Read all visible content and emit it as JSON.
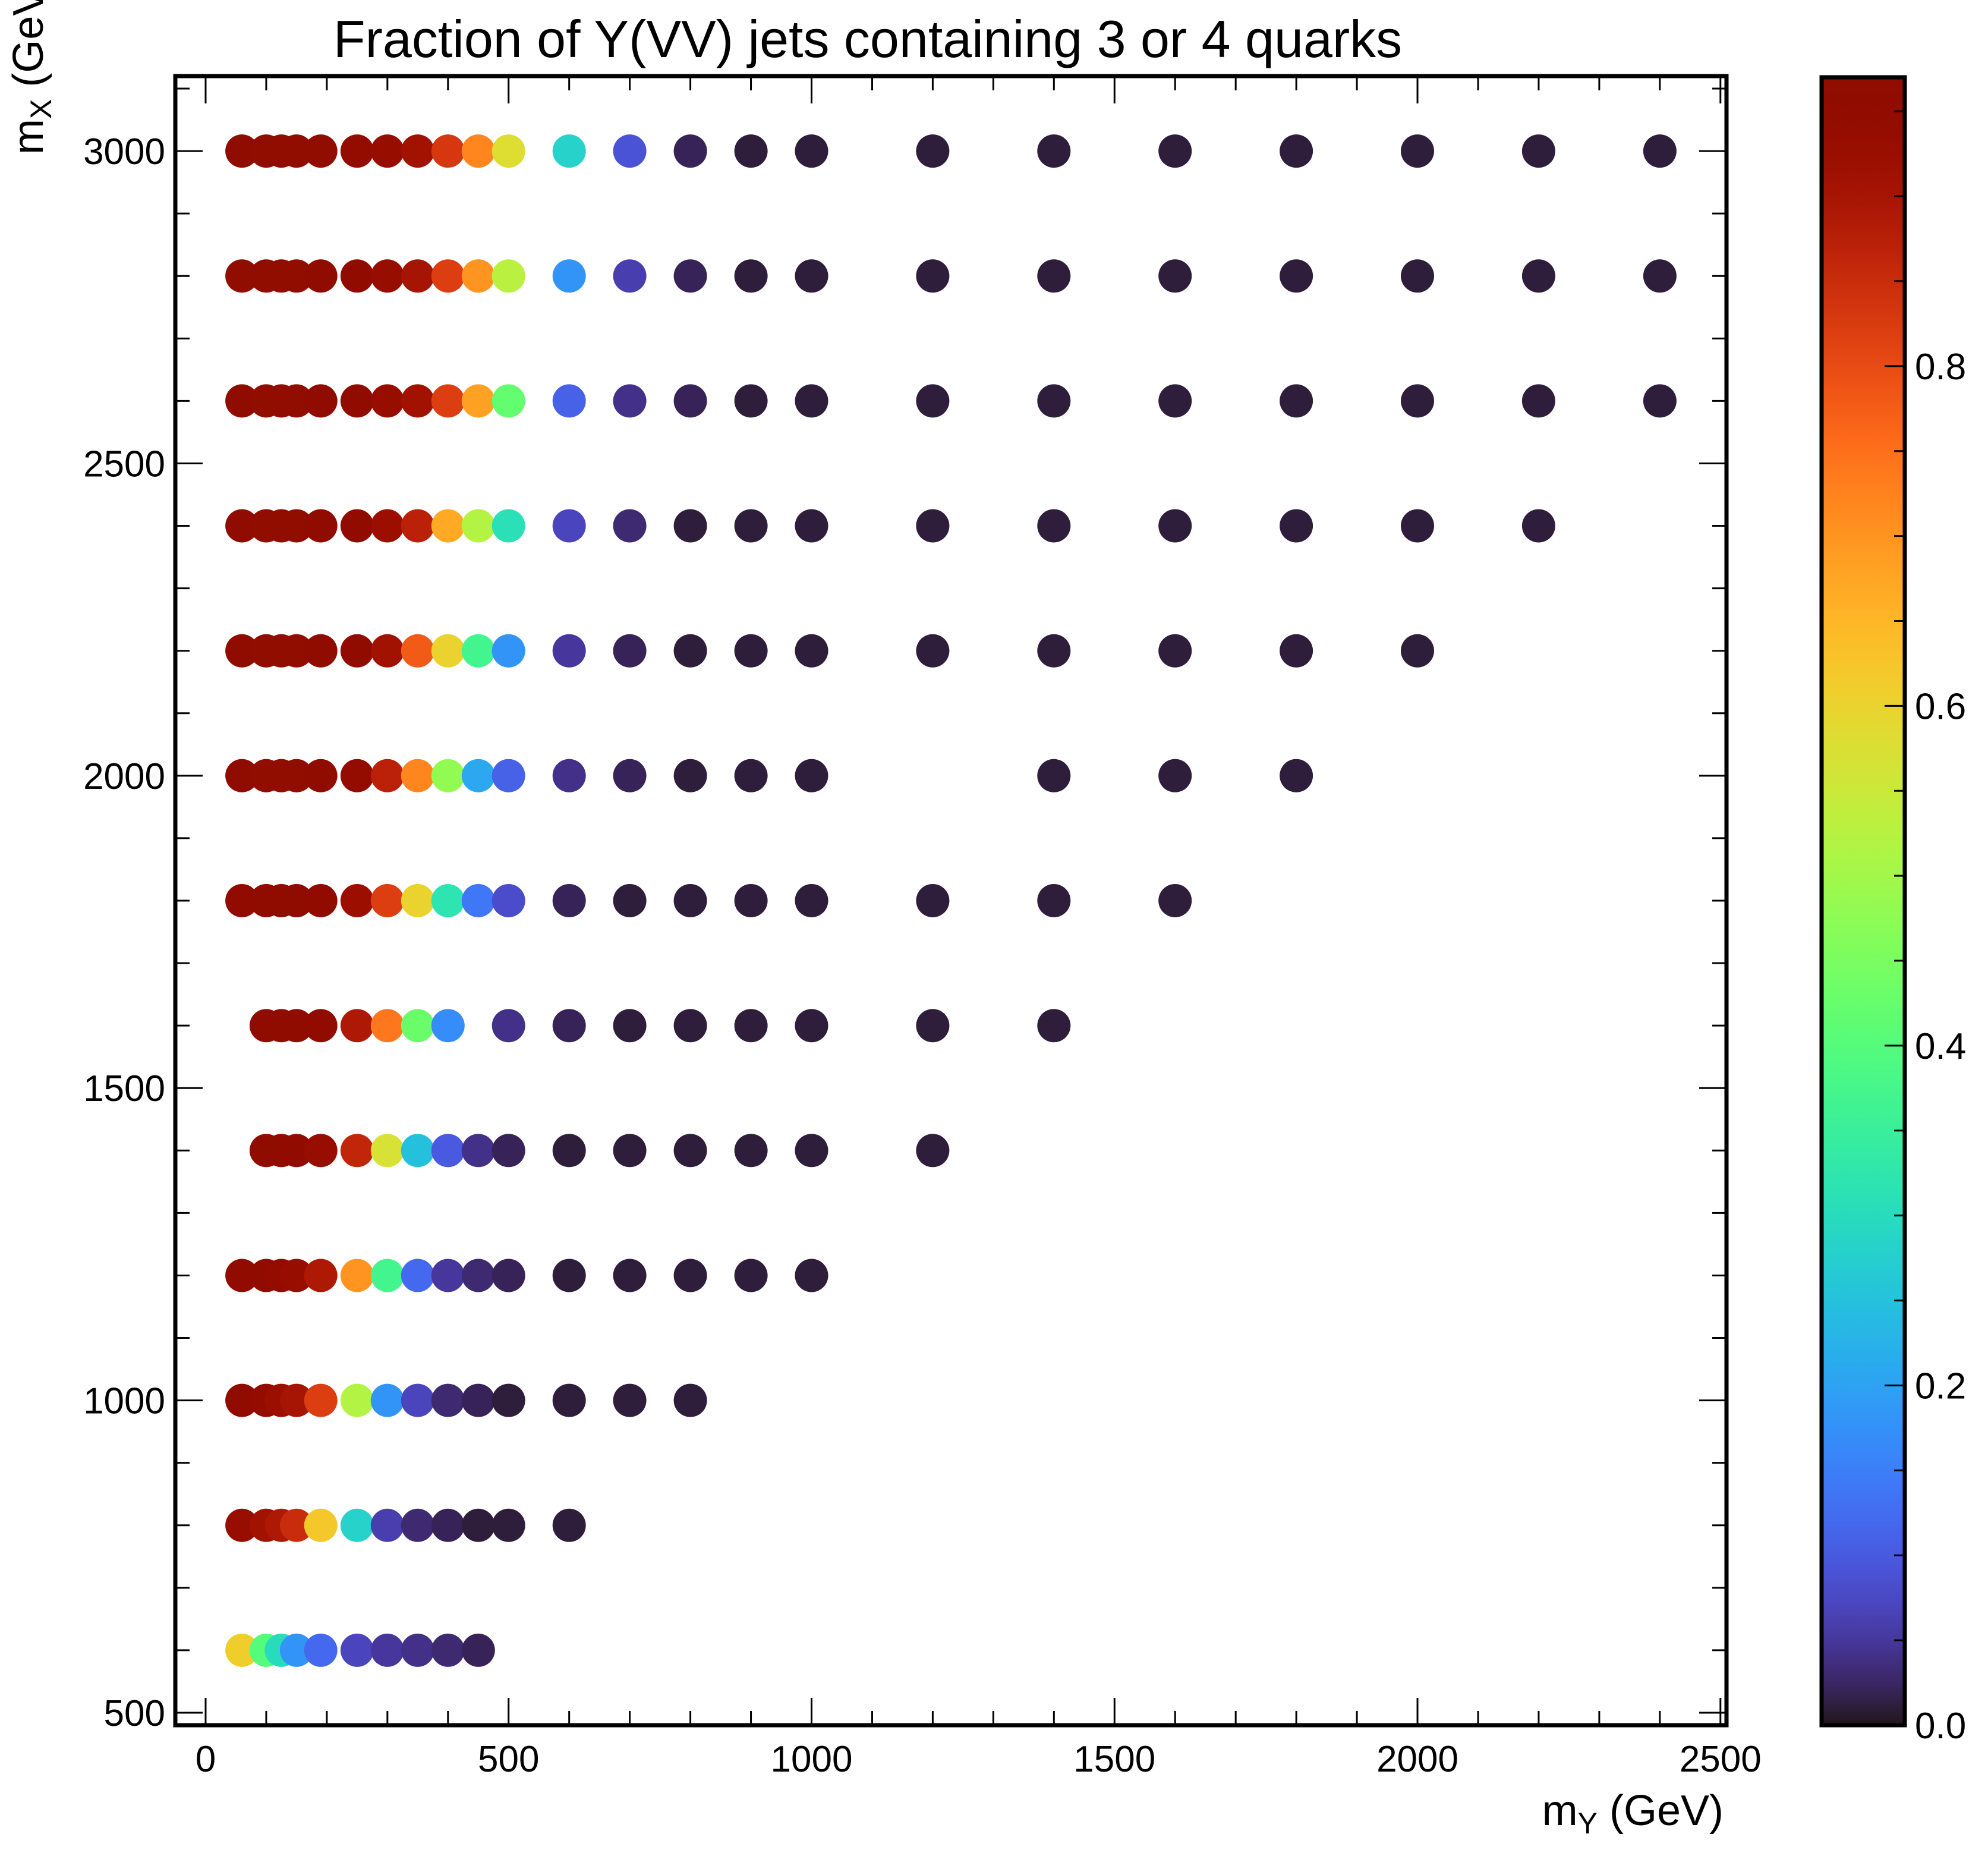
{
  "chart_data": {
    "type": "scatter",
    "title": "Fraction of Y(VV) jets containing 3 or 4 quarks",
    "xlabel": {
      "main": "m",
      "sub": "Y",
      "unit": " (GeV)"
    },
    "ylabel": {
      "main": "m",
      "sub": "X",
      "unit": " (GeV)"
    },
    "xlim": [
      -50,
      2510
    ],
    "ylim": [
      480,
      3120
    ],
    "x_ticks": [
      "0",
      "500",
      "1000",
      "1500",
      "2000",
      "2500"
    ],
    "x_tick_values": [
      0,
      500,
      1000,
      1500,
      2000,
      2500
    ],
    "y_ticks": [
      "500",
      "1000",
      "1500",
      "2000",
      "2500",
      "3000"
    ],
    "y_tick_values": [
      500,
      1000,
      1500,
      2000,
      2500,
      3000
    ],
    "colorbar": {
      "range": [
        0,
        0.97
      ],
      "tick_values": [
        0,
        0.2,
        0.4,
        0.6,
        0.8
      ],
      "tick_labels": [
        "0.0",
        "0.2",
        "0.4",
        "0.6",
        "0.8"
      ],
      "colormap": "turbo"
    },
    "rows": [
      {
        "mX": 3000,
        "mY": [
          60,
          100,
          125,
          150,
          190,
          250,
          300,
          350,
          400,
          450,
          500,
          600,
          700,
          800,
          900,
          1000,
          1200,
          1400,
          1600,
          1800,
          2000,
          2200,
          2400
        ],
        "z": [
          0.96,
          0.97,
          0.97,
          0.97,
          0.97,
          0.94,
          0.93,
          0.91,
          0.83,
          0.72,
          0.58,
          0.28,
          0.09,
          0.02,
          0.01,
          0.01,
          0.01,
          0.01,
          0.01,
          0.01,
          0.01,
          0.01,
          0.01
        ]
      },
      {
        "mX": 2800,
        "mY": [
          60,
          100,
          125,
          150,
          190,
          250,
          300,
          350,
          400,
          450,
          500,
          600,
          700,
          800,
          900,
          1000,
          1200,
          1400,
          1600,
          1800,
          2000,
          2200,
          2400
        ],
        "z": [
          0.97,
          0.97,
          0.97,
          0.97,
          0.96,
          0.95,
          0.93,
          0.9,
          0.82,
          0.7,
          0.53,
          0.18,
          0.06,
          0.02,
          0.01,
          0.01,
          0.01,
          0.01,
          0.01,
          0.01,
          0.01,
          0.01,
          0.01
        ]
      },
      {
        "mX": 2600,
        "mY": [
          60,
          100,
          125,
          150,
          190,
          250,
          300,
          350,
          400,
          450,
          500,
          600,
          700,
          800,
          900,
          1000,
          1200,
          1400,
          1600,
          1800,
          2000,
          2200,
          2400
        ],
        "z": [
          0.96,
          0.97,
          0.97,
          0.97,
          0.96,
          0.95,
          0.93,
          0.91,
          0.82,
          0.68,
          0.42,
          0.11,
          0.04,
          0.02,
          0.01,
          0.01,
          0.01,
          0.01,
          0.01,
          0.01,
          0.01,
          0.01,
          0.01
        ]
      },
      {
        "mX": 2400,
        "mY": [
          60,
          100,
          125,
          150,
          190,
          250,
          300,
          350,
          400,
          450,
          500,
          600,
          700,
          800,
          900,
          1000,
          1200,
          1400,
          1600,
          1800,
          2000,
          2200
        ],
        "z": [
          0.96,
          0.97,
          0.97,
          0.97,
          0.96,
          0.95,
          0.92,
          0.87,
          0.67,
          0.52,
          0.31,
          0.07,
          0.03,
          0.01,
          0.01,
          0.01,
          0.01,
          0.01,
          0.01,
          0.01,
          0.01,
          0.01
        ]
      },
      {
        "mX": 2200,
        "mY": [
          60,
          100,
          125,
          150,
          190,
          250,
          300,
          350,
          400,
          450,
          500,
          600,
          700,
          800,
          900,
          1000,
          1200,
          1400,
          1600,
          1800,
          2000
        ],
        "z": [
          0.96,
          0.97,
          0.97,
          0.97,
          0.96,
          0.95,
          0.91,
          0.78,
          0.6,
          0.37,
          0.18,
          0.05,
          0.02,
          0.01,
          0.01,
          0.01,
          0.01,
          0.01,
          0.01,
          0.01,
          0.01
        ]
      },
      {
        "mX": 2000,
        "mY": [
          60,
          100,
          125,
          150,
          190,
          250,
          300,
          350,
          400,
          450,
          500,
          600,
          700,
          800,
          900,
          1000,
          1400,
          1600,
          1800
        ],
        "z": [
          0.96,
          0.97,
          0.97,
          0.97,
          0.96,
          0.94,
          0.87,
          0.72,
          0.48,
          0.21,
          0.11,
          0.04,
          0.02,
          0.01,
          0.01,
          0.01,
          0.01,
          0.01,
          0.01
        ]
      },
      {
        "mX": 1800,
        "mY": [
          60,
          100,
          125,
          150,
          190,
          250,
          300,
          350,
          400,
          450,
          500,
          600,
          700,
          800,
          900,
          1000,
          1200,
          1400,
          1600
        ],
        "z": [
          0.95,
          0.96,
          0.96,
          0.96,
          0.95,
          0.92,
          0.82,
          0.6,
          0.32,
          0.14,
          0.08,
          0.02,
          0.01,
          0.01,
          0.01,
          0.01,
          0.01,
          0.01,
          0.01
        ]
      },
      {
        "mX": 1600,
        "mY": [
          100,
          125,
          150,
          190,
          250,
          300,
          350,
          400,
          500,
          600,
          700,
          800,
          900,
          1000,
          1200,
          1400
        ],
        "z": [
          0.96,
          0.96,
          0.96,
          0.95,
          0.89,
          0.74,
          0.43,
          0.17,
          0.04,
          0.02,
          0.01,
          0.01,
          0.01,
          0.01,
          0.01,
          0.01
        ]
      },
      {
        "mX": 1400,
        "mY": [
          100,
          125,
          150,
          190,
          250,
          300,
          350,
          400,
          450,
          500,
          600,
          700,
          800,
          900,
          1000,
          1200
        ],
        "z": [
          0.96,
          0.96,
          0.95,
          0.93,
          0.86,
          0.57,
          0.25,
          0.1,
          0.04,
          0.02,
          0.01,
          0.01,
          0.01,
          0.01,
          0.01,
          0.01
        ]
      },
      {
        "mX": 1200,
        "mY": [
          60,
          100,
          125,
          150,
          190,
          250,
          300,
          350,
          400,
          450,
          500,
          600,
          700,
          800,
          900,
          1000
        ],
        "z": [
          0.95,
          0.95,
          0.94,
          0.93,
          0.89,
          0.7,
          0.37,
          0.12,
          0.05,
          0.03,
          0.02,
          0.01,
          0.01,
          0.01,
          0.01,
          0.01
        ]
      },
      {
        "mX": 1000,
        "mY": [
          60,
          100,
          125,
          150,
          190,
          250,
          300,
          350,
          400,
          450,
          500,
          600,
          700,
          800
        ],
        "z": [
          0.95,
          0.94,
          0.92,
          0.9,
          0.82,
          0.52,
          0.18,
          0.07,
          0.03,
          0.02,
          0.01,
          0.01,
          0.01,
          0.01
        ]
      },
      {
        "mX": 800,
        "mY": [
          60,
          100,
          125,
          150,
          190,
          250,
          300,
          350,
          400,
          450,
          500,
          600
        ],
        "z": [
          0.93,
          0.91,
          0.89,
          0.85,
          0.62,
          0.28,
          0.06,
          0.03,
          0.02,
          0.01,
          0.01,
          0.01
        ]
      },
      {
        "mX": 600,
        "mY": [
          60,
          100,
          125,
          150,
          190,
          250,
          300,
          350,
          400,
          450
        ],
        "z": [
          0.61,
          0.4,
          0.3,
          0.18,
          0.12,
          0.07,
          0.05,
          0.04,
          0.03,
          0.02
        ]
      }
    ]
  }
}
